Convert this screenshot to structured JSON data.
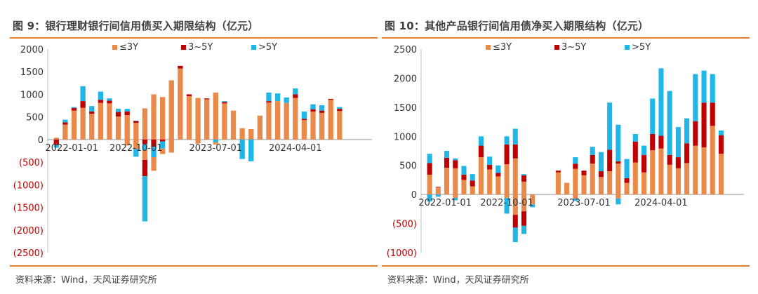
{
  "figures": [
    {
      "title": "图 9：银行理财银行间信用债买入期限结构（亿元）",
      "source": "资料来源：Wind，天风证券研究所"
    },
    {
      "title": "图 10：其他产品银行间信用债净买入期限结构（亿元）",
      "source": "资料来源：Wind，天风证券研究所"
    }
  ],
  "colors": {
    "s1": "#e98a4a",
    "s2": "#c00000",
    "s3": "#1fb6e8",
    "neg_tick": "#c00000",
    "rule": "#e87f2d"
  },
  "chart_data": [
    {
      "type": "bar",
      "stacked": true,
      "title": "图 9：银行理财银行间信用债买入期限结构（亿元）",
      "xlabel": "",
      "ylabel": "",
      "ylim": [
        -2500,
        2000
      ],
      "yticks": [
        2000,
        1500,
        1000,
        500,
        0,
        -500,
        -1000,
        -1500,
        -2000,
        -2500
      ],
      "ytick_labels": [
        "2000",
        "1500",
        "1000",
        "500",
        "0",
        "(500)",
        "(1000)",
        "(1500)",
        "(2000)",
        "(2500)"
      ],
      "x_tick_labels": [
        {
          "index": 0,
          "label": "2022-01-01"
        },
        {
          "index": 9,
          "label": "2022-10-01"
        },
        {
          "index": 18,
          "label": "2023-07-01"
        },
        {
          "index": 27,
          "label": "2024-04-01"
        }
      ],
      "legend_position": "top",
      "categories": [
        "2022-01",
        "2022-02",
        "2022-03",
        "2022-04",
        "2022-05",
        "2022-06",
        "2022-07",
        "2022-08",
        "2022-09",
        "2022-10",
        "2022-11",
        "2022-12",
        "2023-01",
        "2023-02",
        "2023-03",
        "2023-04",
        "2023-05",
        "2023-06",
        "2023-07",
        "2023-08",
        "2023-09",
        "2023-10",
        "2023-11",
        "2023-12",
        "2024-01",
        "2024-02",
        "2024-03",
        "2024-04",
        "2024-05",
        "2024-06",
        "2024-07",
        "2024-08",
        "2024-09",
        "2024-10",
        "2024-11",
        "2024-12"
      ],
      "series": [
        {
          "name": "≤3Y",
          "values": [
            40,
            330,
            640,
            700,
            570,
            810,
            800,
            510,
            540,
            370,
            690,
            1000,
            940,
            1310,
            1570,
            960,
            920,
            890,
            1040,
            800,
            640,
            250,
            230,
            530,
            820,
            850,
            810,
            920,
            430,
            620,
            590,
            880,
            630,
            0,
            0,
            0
          ]
        },
        {
          "name": "3~5Y",
          "values": [
            -120,
            50,
            60,
            150,
            50,
            70,
            60,
            100,
            80,
            40,
            -100,
            -160,
            -40,
            0,
            60,
            40,
            0,
            20,
            0,
            30,
            0,
            0,
            0,
            0,
            30,
            0,
            0,
            80,
            30,
            50,
            50,
            20,
            50,
            0,
            0,
            0
          ]
        },
        {
          "name": ">5Y",
          "values": [
            -60,
            60,
            20,
            330,
            120,
            180,
            50,
            70,
            60,
            10,
            -130,
            -230,
            -160,
            0,
            0,
            0,
            0,
            0,
            -60,
            20,
            0,
            -430,
            -480,
            0,
            190,
            170,
            120,
            130,
            160,
            110,
            120,
            0,
            40,
            0,
            0,
            0
          ]
        }
      ],
      "series_negative": [
        {
          "name": "≤3Y",
          "values": [
            0,
            0,
            0,
            0,
            0,
            0,
            0,
            0,
            -130,
            -210,
            -220,
            -300,
            -120,
            -290,
            0,
            0,
            -90,
            0,
            -50,
            0,
            0,
            0,
            0,
            0,
            0,
            0,
            0,
            0,
            0,
            0,
            0,
            0,
            0,
            0,
            0,
            0
          ]
        },
        {
          "name": "3~5Y",
          "values": [
            0,
            0,
            0,
            0,
            0,
            0,
            0,
            0,
            0,
            0,
            -360,
            0,
            0,
            0,
            0,
            0,
            0,
            0,
            0,
            0,
            0,
            0,
            0,
            0,
            0,
            0,
            0,
            0,
            0,
            0,
            0,
            0,
            0,
            0,
            0,
            0
          ]
        },
        {
          "name": ">5Y",
          "values": [
            0,
            0,
            0,
            0,
            0,
            0,
            0,
            0,
            0,
            -170,
            -1000,
            0,
            0,
            0,
            0,
            0,
            0,
            0,
            0,
            0,
            0,
            0,
            0,
            0,
            0,
            0,
            0,
            0,
            0,
            0,
            0,
            0,
            0,
            0,
            0,
            0
          ]
        }
      ]
    },
    {
      "type": "bar",
      "stacked": true,
      "title": "图 10：其他产品银行间信用债净买入期限结构（亿元）",
      "xlabel": "",
      "ylabel": "",
      "ylim": [
        -1000,
        2500
      ],
      "yticks": [
        2500,
        2000,
        1500,
        1000,
        500,
        0,
        -500,
        -1000
      ],
      "ytick_labels": [
        "2500",
        "2000",
        "1500",
        "1000",
        "500",
        "0",
        "(500)",
        "(1000)"
      ],
      "x_tick_labels": [
        {
          "index": 0,
          "label": "2022-01-01"
        },
        {
          "index": 9,
          "label": "2022-10-01"
        },
        {
          "index": 18,
          "label": "2023-07-01"
        },
        {
          "index": 27,
          "label": "2024-04-01"
        }
      ],
      "legend_position": "top",
      "categories": [
        "2022-01",
        "2022-02",
        "2022-03",
        "2022-04",
        "2022-05",
        "2022-06",
        "2022-07",
        "2022-08",
        "2022-09",
        "2022-10",
        "2022-11",
        "2022-12",
        "2023-01",
        "2023-02",
        "2023-03",
        "2023-04",
        "2023-05",
        "2023-06",
        "2023-07",
        "2023-08",
        "2023-09",
        "2023-10",
        "2023-11",
        "2023-12",
        "2024-01",
        "2024-02",
        "2024-03",
        "2024-04",
        "2024-05",
        "2024-06",
        "2024-07",
        "2024-08",
        "2024-09",
        "2024-10",
        "2024-11",
        "2024-12",
        "2025-01"
      ],
      "series": [
        {
          "name": "≤3Y",
          "values": [
            340,
            120,
            460,
            450,
            250,
            140,
            640,
            430,
            310,
            520,
            620,
            220,
            0,
            0,
            0,
            380,
            200,
            440,
            330,
            530,
            300,
            400,
            530,
            200,
            550,
            380,
            760,
            790,
            510,
            450,
            540,
            840,
            810,
            1180,
            700,
            0,
            0
          ]
        },
        {
          "name": "3~5Y",
          "values": [
            200,
            10,
            170,
            140,
            90,
            100,
            200,
            80,
            60,
            340,
            240,
            110,
            0,
            0,
            0,
            30,
            0,
            90,
            80,
            150,
            100,
            370,
            40,
            80,
            360,
            300,
            280,
            220,
            170,
            190,
            340,
            420,
            770,
            400,
            320,
            0,
            0
          ]
        },
        {
          "name": ">5Y",
          "values": [
            160,
            0,
            120,
            30,
            150,
            110,
            160,
            140,
            130,
            140,
            270,
            20,
            0,
            0,
            0,
            0,
            0,
            110,
            0,
            140,
            330,
            810,
            630,
            330,
            130,
            160,
            610,
            1160,
            1100,
            520,
            430,
            810,
            550,
            490,
            80,
            0,
            0
          ]
        }
      ],
      "series_negative": [
        {
          "name": "≤3Y",
          "values": [
            0,
            0,
            0,
            -60,
            0,
            0,
            0,
            0,
            0,
            -60,
            -350,
            -290,
            -170,
            0,
            0,
            0,
            0,
            -70,
            0,
            0,
            0,
            0,
            -70,
            0,
            0,
            0,
            0,
            0,
            0,
            0,
            0,
            0,
            0,
            0,
            0,
            0,
            0
          ]
        },
        {
          "name": "3~5Y",
          "values": [
            0,
            0,
            0,
            0,
            0,
            0,
            0,
            0,
            0,
            0,
            -220,
            -250,
            0,
            0,
            0,
            0,
            0,
            0,
            0,
            0,
            0,
            0,
            0,
            0,
            0,
            0,
            0,
            0,
            0,
            0,
            0,
            0,
            0,
            0,
            0,
            0,
            0
          ]
        },
        {
          "name": ">5Y",
          "values": [
            -120,
            -40,
            0,
            -40,
            0,
            0,
            0,
            0,
            0,
            -270,
            -250,
            -140,
            -50,
            0,
            0,
            0,
            0,
            -40,
            0,
            0,
            0,
            0,
            -100,
            0,
            0,
            0,
            0,
            0,
            0,
            0,
            0,
            0,
            0,
            0,
            0,
            0,
            0
          ]
        }
      ]
    }
  ]
}
